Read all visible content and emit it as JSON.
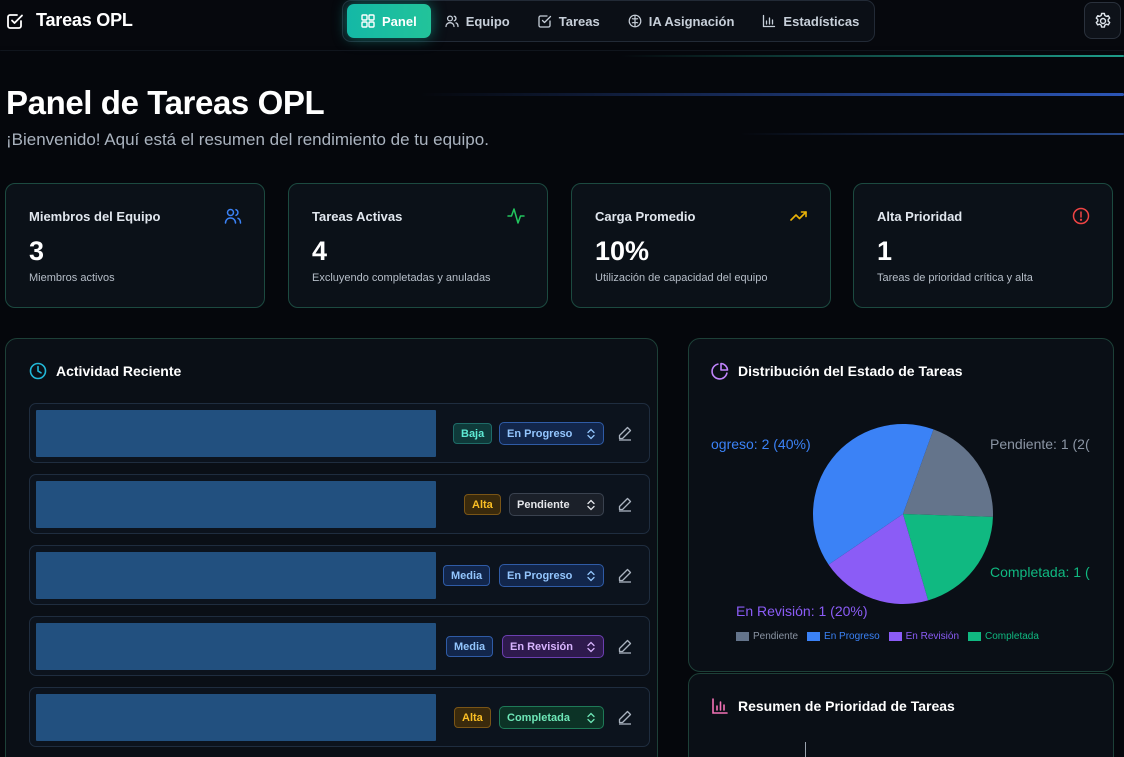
{
  "app": {
    "title": "Tareas OPL",
    "nav": [
      {
        "label": "Panel",
        "icon": "grid-icon",
        "active": true
      },
      {
        "label": "Equipo",
        "icon": "users-icon",
        "active": false
      },
      {
        "label": "Tareas",
        "icon": "checkbox-icon",
        "active": false
      },
      {
        "label": "IA Asignación",
        "icon": "brain-icon",
        "active": false
      },
      {
        "label": "Estadísticas",
        "icon": "bar-chart-icon",
        "active": false
      }
    ],
    "settings_icon": "gear-icon"
  },
  "header": {
    "title": "Panel de Tareas OPL",
    "subtitle": "¡Bienvenido! Aquí está el resumen del rendimiento de tu equipo."
  },
  "stats": [
    {
      "label": "Miembros del Equipo",
      "value": "3",
      "desc": "Miembros activos",
      "icon": "users-icon",
      "color": "#3b82f6"
    },
    {
      "label": "Tareas Activas",
      "value": "4",
      "desc": "Excluyendo completadas y anuladas",
      "icon": "activity-icon",
      "color": "#22c55e"
    },
    {
      "label": "Carga Promedio",
      "value": "10%",
      "desc": "Utilización de capacidad del equipo",
      "icon": "trending-up-icon",
      "color": "#eab308"
    },
    {
      "label": "Alta Prioridad",
      "value": "1",
      "desc": "Tareas de prioridad crítica y alta",
      "icon": "alert-circle-icon",
      "color": "#ef4444"
    }
  ],
  "activity": {
    "title": "Actividad Reciente",
    "icon": "clock-icon",
    "rows": [
      {
        "priority": "Baja",
        "status": "En Progreso"
      },
      {
        "priority": "Alta",
        "status": "Pendiente"
      },
      {
        "priority": "Media",
        "status": "En Progreso"
      },
      {
        "priority": "Media",
        "status": "En Revisión"
      },
      {
        "priority": "Alta",
        "status": "Completada"
      }
    ]
  },
  "distribution": {
    "title": "Distribución del Estado de Tareas",
    "icon": "pie-chart-icon",
    "labels": {
      "in_progress": "ogreso: 2 (40%)",
      "pending": "Pendiente: 1 (2(",
      "completed": "Completada: 1 (",
      "in_review": "En Revisión: 1 (20%)"
    }
  },
  "chart_data": {
    "type": "pie",
    "categories": [
      "Pendiente",
      "En Progreso",
      "En Revisión",
      "Completada"
    ],
    "values": [
      1,
      2,
      1,
      1
    ],
    "percentages": [
      20,
      40,
      20,
      20
    ],
    "colors": [
      "#64748b",
      "#3b82f6",
      "#8b5cf6",
      "#10b981"
    ],
    "legend_position": "bottom"
  },
  "priority_summary": {
    "title": "Resumen de Prioridad de Tareas",
    "icon": "bar-chart-icon"
  }
}
